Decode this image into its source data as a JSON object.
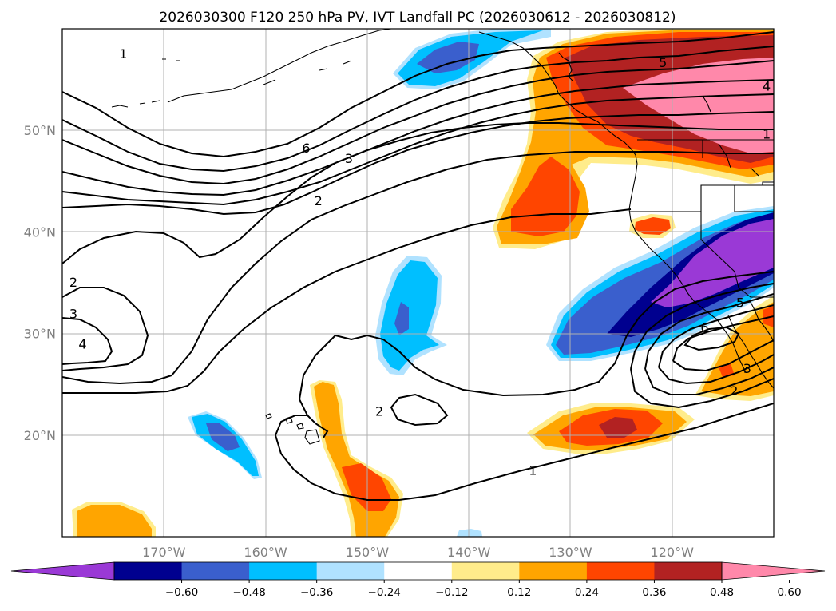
{
  "title": "2026030300 F120 250 hPa PV, IVT Landfall PC (2026030612 - 2026030812)",
  "map": {
    "lon_range": [
      -180,
      -110
    ],
    "lat_range": [
      10,
      60
    ],
    "lon_ticks": [
      {
        "lon": -170,
        "label": "170°W"
      },
      {
        "lon": -160,
        "label": "160°W"
      },
      {
        "lon": -150,
        "label": "150°W"
      },
      {
        "lon": -140,
        "label": "140°W"
      },
      {
        "lon": -130,
        "label": "130°W"
      },
      {
        "lon": -120,
        "label": "120°W"
      }
    ],
    "lat_ticks": [
      {
        "lat": 20,
        "label": "20°N"
      },
      {
        "lat": 30,
        "label": "30°N"
      },
      {
        "lat": 40,
        "label": "40°N"
      },
      {
        "lat": 50,
        "label": "50°N"
      }
    ],
    "grid": true
  },
  "colorbar": {
    "extend": "both",
    "colors": [
      "#9a39d6",
      "#00008f",
      "#3a5fcd",
      "#00bfff",
      "#b0e2ff",
      "#ffffff",
      "#ffec8b",
      "#ffa500",
      "#ff4500",
      "#b22222",
      "#ff88aa"
    ],
    "ticks": [
      "−0.60",
      "−0.48",
      "−0.36",
      "−0.24",
      "−0.12",
      "0.12",
      "0.24",
      "0.36",
      "0.48",
      "0.60"
    ]
  },
  "contour_labels": [
    {
      "text": "1",
      "lon": -174,
      "lat": 57.5
    },
    {
      "text": "6",
      "lon": -156,
      "lat": 48.2
    },
    {
      "text": "3",
      "lon": -151.8,
      "lat": 47.2
    },
    {
      "text": "2",
      "lon": -154.8,
      "lat": 43.0
    },
    {
      "text": "2",
      "lon": -178.9,
      "lat": 35.0
    },
    {
      "text": "3",
      "lon": -178.9,
      "lat": 31.9
    },
    {
      "text": "4",
      "lon": -178.0,
      "lat": 28.9
    },
    {
      "text": "5",
      "lon": -120.9,
      "lat": 56.6
    },
    {
      "text": "4",
      "lon": -110.7,
      "lat": 54.3
    },
    {
      "text": "1",
      "lon": -110.7,
      "lat": 49.6
    },
    {
      "text": "5",
      "lon": -113.3,
      "lat": 33.0
    },
    {
      "text": "6",
      "lon": -116.8,
      "lat": 30.5
    },
    {
      "text": "3",
      "lon": -112.6,
      "lat": 26.5
    },
    {
      "text": "2",
      "lon": -113.9,
      "lat": 24.3
    },
    {
      "text": "2",
      "lon": -148.8,
      "lat": 22.3
    },
    {
      "text": "1",
      "lon": -133.7,
      "lat": 16.5
    }
  ]
}
